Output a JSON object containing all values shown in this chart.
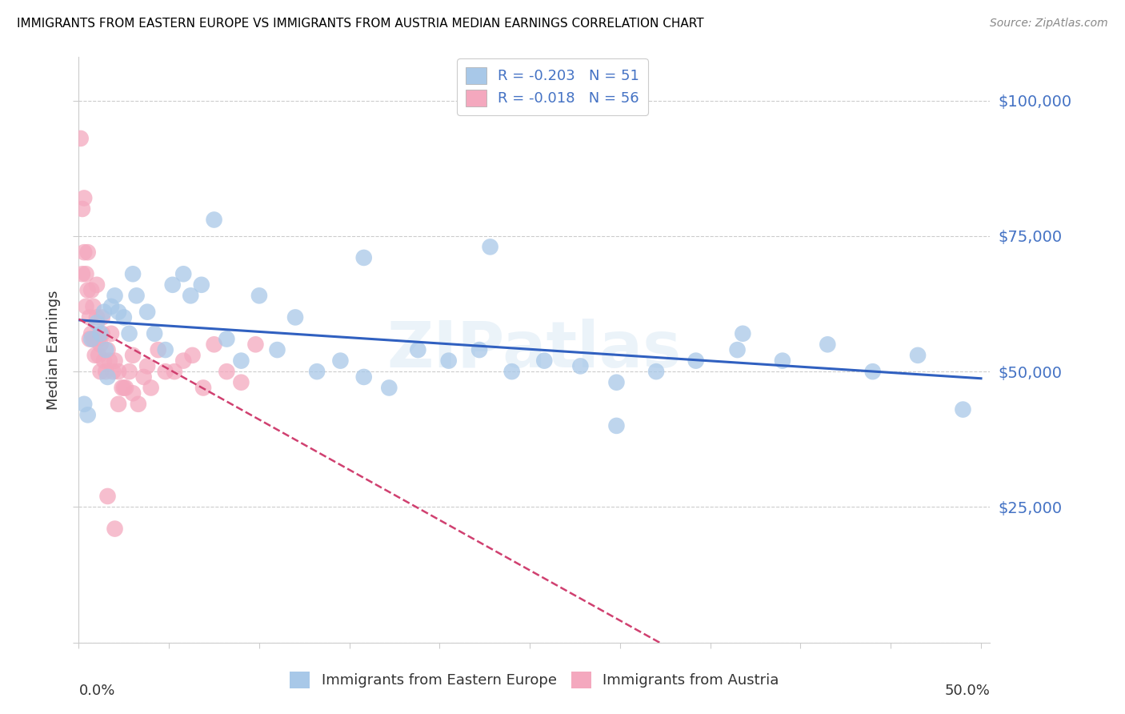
{
  "title": "IMMIGRANTS FROM EASTERN EUROPE VS IMMIGRANTS FROM AUSTRIA MEDIAN EARNINGS CORRELATION CHART",
  "source": "Source: ZipAtlas.com",
  "ylabel": "Median Earnings",
  "legend_label_blue": "Immigrants from Eastern Europe",
  "legend_label_pink": "Immigrants from Austria",
  "blue_color": "#a8c8e8",
  "pink_color": "#f4a8be",
  "trend_blue_color": "#3060c0",
  "trend_pink_color": "#d04070",
  "ytick_values": [
    0,
    25000,
    50000,
    75000,
    100000
  ],
  "ytick_labels": [
    "",
    "$25,000",
    "$50,000",
    "$75,000",
    "$100,000"
  ],
  "xlim": [
    0.0,
    0.505
  ],
  "ylim": [
    0,
    108000
  ],
  "blue_scatter_x": [
    0.003,
    0.005,
    0.007,
    0.01,
    0.012,
    0.014,
    0.015,
    0.016,
    0.018,
    0.02,
    0.022,
    0.025,
    0.028,
    0.03,
    0.032,
    0.038,
    0.042,
    0.048,
    0.052,
    0.058,
    0.062,
    0.068,
    0.075,
    0.082,
    0.09,
    0.1,
    0.11,
    0.12,
    0.132,
    0.145,
    0.158,
    0.172,
    0.188,
    0.205,
    0.222,
    0.24,
    0.258,
    0.278,
    0.298,
    0.32,
    0.342,
    0.365,
    0.39,
    0.415,
    0.44,
    0.465,
    0.49,
    0.368,
    0.298,
    0.228,
    0.158
  ],
  "blue_scatter_y": [
    44000,
    42000,
    56000,
    59000,
    57000,
    61000,
    54000,
    49000,
    62000,
    64000,
    61000,
    60000,
    57000,
    68000,
    64000,
    61000,
    57000,
    54000,
    66000,
    68000,
    64000,
    66000,
    78000,
    56000,
    52000,
    64000,
    54000,
    60000,
    50000,
    52000,
    49000,
    47000,
    54000,
    52000,
    54000,
    50000,
    52000,
    51000,
    48000,
    50000,
    52000,
    54000,
    52000,
    55000,
    50000,
    53000,
    43000,
    57000,
    40000,
    73000,
    71000
  ],
  "pink_scatter_x": [
    0.001,
    0.002,
    0.002,
    0.003,
    0.003,
    0.004,
    0.004,
    0.005,
    0.005,
    0.006,
    0.006,
    0.007,
    0.007,
    0.008,
    0.008,
    0.009,
    0.009,
    0.01,
    0.01,
    0.011,
    0.011,
    0.012,
    0.012,
    0.013,
    0.013,
    0.014,
    0.015,
    0.016,
    0.017,
    0.018,
    0.019,
    0.02,
    0.022,
    0.024,
    0.026,
    0.028,
    0.03,
    0.033,
    0.036,
    0.04,
    0.044,
    0.048,
    0.053,
    0.058,
    0.063,
    0.069,
    0.075,
    0.082,
    0.09,
    0.098,
    0.025,
    0.03,
    0.038,
    0.016,
    0.02,
    0.022
  ],
  "pink_scatter_y": [
    93000,
    80000,
    68000,
    82000,
    72000,
    68000,
    62000,
    65000,
    72000,
    56000,
    60000,
    65000,
    57000,
    56000,
    62000,
    56000,
    53000,
    66000,
    60000,
    56000,
    53000,
    50000,
    55000,
    60000,
    57000,
    52000,
    50000,
    54000,
    52000,
    57000,
    50000,
    52000,
    50000,
    47000,
    47000,
    50000,
    46000,
    44000,
    49000,
    47000,
    54000,
    50000,
    50000,
    52000,
    53000,
    47000,
    55000,
    50000,
    48000,
    55000,
    47000,
    53000,
    51000,
    27000,
    21000,
    44000
  ],
  "legend_R_blue": "-0.203",
  "legend_N_blue": "51",
  "legend_R_pink": "-0.018",
  "legend_N_pink": "56",
  "watermark": "ZIPatlas",
  "text_color_blue": "#4472c4",
  "text_color_dark": "#333333",
  "grid_color": "#cccccc",
  "spine_color": "#cccccc"
}
